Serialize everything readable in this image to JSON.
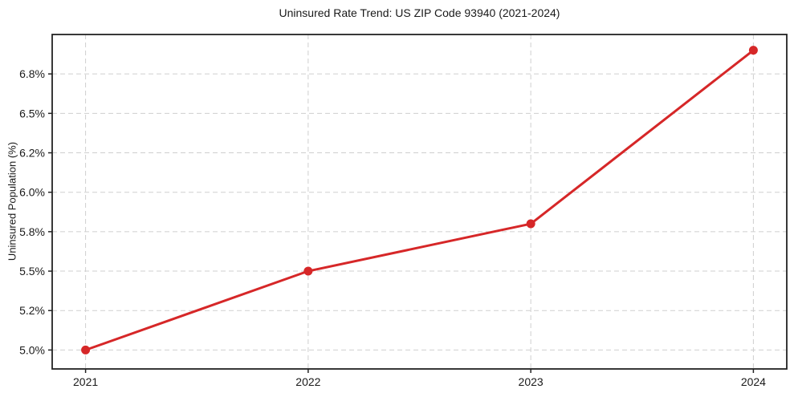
{
  "title": "Uninsured Rate Trend: US ZIP Code 93940 (2021-2024)",
  "chart_data": {
    "type": "line",
    "title": "Uninsured Rate Trend: US ZIP Code 93940 (2021-2024)",
    "xlabel": "",
    "ylabel": "Uninsured Population (%)",
    "x": [
      2021,
      2022,
      2023,
      2024
    ],
    "values": [
      5.0,
      5.5,
      5.8,
      6.9
    ],
    "x_ticks": [
      2021,
      2022,
      2023,
      2024
    ],
    "x_tick_labels": [
      "2021",
      "2022",
      "2023",
      "2024"
    ],
    "y_ticks": [
      5.0,
      5.25,
      5.5,
      5.75,
      6.0,
      6.25,
      6.5,
      6.75
    ],
    "y_tick_labels": [
      "5.0%",
      "5.2%",
      "5.5%",
      "5.8%",
      "6.0%",
      "6.2%",
      "6.5%",
      "6.8%"
    ],
    "xlim": [
      2020.85,
      2024.15
    ],
    "ylim": [
      4.88,
      7.0
    ],
    "grid": true,
    "grid_style": "dashed",
    "legend": false,
    "line_color": "#d62728",
    "grid_color": "#cfcfcf",
    "spine_color": "#222222",
    "text_color": "#1a1a1a",
    "background": "#ffffff",
    "marker": "circle"
  }
}
